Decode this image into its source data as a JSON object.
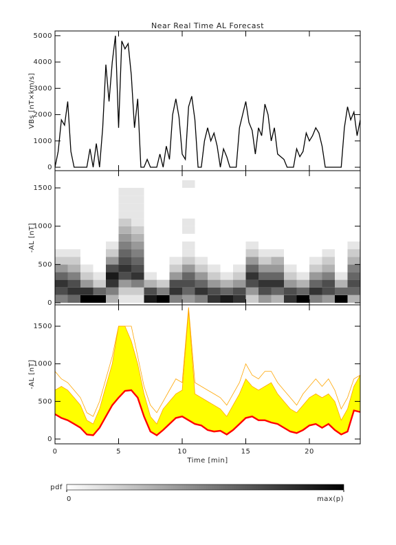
{
  "chart_data": [
    {
      "type": "line",
      "title": "Near Real Time AL Forecast",
      "ylabel": "VBs [nT×km/s]",
      "color": "#000000",
      "xlim": [
        0,
        24
      ],
      "ylim": [
        -130,
        5180
      ],
      "yticks": [
        0,
        1000,
        2000,
        3000,
        4000,
        5000
      ],
      "x": [
        0,
        0.25,
        0.5,
        0.75,
        1,
        1.25,
        1.5,
        1.75,
        2,
        2.25,
        2.5,
        2.75,
        3,
        3.25,
        3.5,
        3.75,
        4,
        4.25,
        4.5,
        4.75,
        5,
        5.25,
        5.5,
        5.75,
        6,
        6.25,
        6.5,
        6.75,
        7,
        7.25,
        7.5,
        7.75,
        8,
        8.25,
        8.5,
        8.75,
        9,
        9.25,
        9.5,
        9.75,
        10,
        10.25,
        10.5,
        10.75,
        11,
        11.25,
        11.5,
        11.75,
        12,
        12.25,
        12.5,
        12.75,
        13,
        13.25,
        13.5,
        13.75,
        14,
        14.25,
        14.5,
        14.75,
        15,
        15.25,
        15.5,
        15.75,
        16,
        16.25,
        16.5,
        16.75,
        17,
        17.25,
        17.5,
        17.75,
        18,
        18.25,
        18.5,
        18.75,
        19,
        19.25,
        19.5,
        19.75,
        20,
        20.25,
        20.5,
        20.75,
        21,
        21.25,
        21.5,
        21.75,
        22,
        22.25,
        22.5,
        22.75,
        23,
        23.25,
        23.5,
        23.75,
        24
      ],
      "values": [
        0,
        600,
        1800,
        1600,
        2500,
        600,
        0,
        0,
        0,
        0,
        0,
        700,
        0,
        900,
        0,
        1500,
        3900,
        2500,
        4000,
        5000,
        1500,
        4800,
        4500,
        4700,
        3500,
        1500,
        2600,
        0,
        0,
        300,
        0,
        0,
        0,
        500,
        0,
        800,
        300,
        2000,
        2600,
        1900,
        500,
        300,
        2300,
        2700,
        1800,
        0,
        0,
        1000,
        1500,
        1000,
        1300,
        800,
        0,
        700,
        400,
        0,
        0,
        0,
        1500,
        2000,
        2500,
        1700,
        1400,
        500,
        1500,
        1200,
        2400,
        2000,
        1000,
        1500,
        500,
        400,
        300,
        0,
        0,
        0,
        700,
        400,
        600,
        1300,
        1000,
        1200,
        1500,
        1300,
        800,
        0,
        0,
        0,
        0,
        0,
        0,
        1500,
        2300,
        1800,
        2100,
        1200,
        1800
      ]
    },
    {
      "type": "heatmap",
      "ylabel": "-AL [nT]",
      "xlim": [
        0,
        24
      ],
      "ylim": [
        -27,
        1725
      ],
      "yticks": [
        0,
        500,
        1000,
        1500
      ],
      "xbins": [
        0,
        1,
        2,
        3,
        4,
        5,
        6,
        7,
        8,
        9,
        10,
        11,
        12,
        13,
        14,
        15,
        16,
        17,
        18,
        19,
        20,
        21,
        22,
        23,
        24
      ],
      "ybins": [
        0,
        100,
        200,
        300,
        400,
        500,
        600,
        700,
        800,
        900,
        1000,
        1100,
        1200,
        1300,
        1400,
        1500,
        1600
      ],
      "z": [
        [
          0.5,
          0.7,
          0.8,
          0.6,
          0.4,
          0.2,
          0.1,
          0,
          0,
          0,
          0,
          0,
          0,
          0,
          0,
          0
        ],
        [
          0.6,
          0.8,
          0.7,
          0.5,
          0.3,
          0.2,
          0.1,
          0,
          0,
          0,
          0,
          0,
          0,
          0,
          0,
          0
        ],
        [
          1,
          0.8,
          0.4,
          0.2,
          0.1,
          0,
          0,
          0,
          0,
          0,
          0,
          0,
          0,
          0,
          0,
          0
        ],
        [
          1,
          0.6,
          0.2,
          0.1,
          0,
          0,
          0,
          0,
          0,
          0,
          0,
          0,
          0,
          0,
          0,
          0
        ],
        [
          0.3,
          0.5,
          0.8,
          0.9,
          0.7,
          0.4,
          0.2,
          0.1,
          0,
          0,
          0,
          0,
          0,
          0,
          0,
          0
        ],
        [
          0.1,
          0.2,
          0.4,
          0.7,
          0.8,
          0.7,
          0.6,
          0.5,
          0.4,
          0.3,
          0.2,
          0.1,
          0.1,
          0.1,
          0.1,
          0
        ],
        [
          0.1,
          0.2,
          0.5,
          0.8,
          0.7,
          0.6,
          0.5,
          0.4,
          0.3,
          0.2,
          0.1,
          0.1,
          0.1,
          0.1,
          0.1,
          0
        ],
        [
          0.9,
          0.7,
          0.3,
          0.1,
          0,
          0,
          0,
          0,
          0,
          0,
          0,
          0,
          0,
          0,
          0,
          0
        ],
        [
          1,
          0.5,
          0.2,
          0,
          0,
          0,
          0,
          0,
          0,
          0,
          0,
          0,
          0,
          0,
          0,
          0
        ],
        [
          0.5,
          0.8,
          0.7,
          0.4,
          0.2,
          0.1,
          0,
          0,
          0,
          0,
          0,
          0,
          0,
          0,
          0,
          0
        ],
        [
          0.4,
          0.6,
          0.7,
          0.6,
          0.4,
          0.2,
          0.1,
          0.1,
          0,
          0.1,
          0.1,
          0,
          0,
          0,
          0,
          0.1
        ],
        [
          0.5,
          0.8,
          0.6,
          0.4,
          0.2,
          0.1,
          0,
          0,
          0,
          0,
          0,
          0,
          0,
          0,
          0,
          0
        ],
        [
          0.8,
          0.7,
          0.4,
          0.2,
          0.1,
          0,
          0,
          0,
          0,
          0,
          0,
          0,
          0,
          0,
          0,
          0
        ],
        [
          0.9,
          0.6,
          0.3,
          0.1,
          0,
          0,
          0,
          0,
          0,
          0,
          0,
          0,
          0,
          0,
          0,
          0
        ],
        [
          0.8,
          0.7,
          0.4,
          0.2,
          0.1,
          0,
          0,
          0,
          0,
          0,
          0,
          0,
          0,
          0,
          0,
          0
        ],
        [
          0.2,
          0.4,
          0.7,
          0.8,
          0.6,
          0.4,
          0.2,
          0.1,
          0,
          0,
          0,
          0,
          0,
          0,
          0,
          0
        ],
        [
          0.4,
          0.7,
          0.8,
          0.6,
          0.4,
          0.2,
          0.1,
          0,
          0,
          0,
          0,
          0,
          0,
          0,
          0,
          0
        ],
        [
          0.3,
          0.6,
          0.8,
          0.6,
          0.4,
          0.3,
          0.1,
          0,
          0,
          0,
          0,
          0,
          0,
          0,
          0,
          0
        ],
        [
          0.8,
          0.7,
          0.4,
          0.2,
          0.1,
          0,
          0,
          0,
          0,
          0,
          0,
          0,
          0,
          0,
          0,
          0
        ],
        [
          1,
          0.6,
          0.3,
          0.1,
          0,
          0,
          0,
          0,
          0,
          0,
          0,
          0,
          0,
          0,
          0,
          0
        ],
        [
          0.5,
          0.8,
          0.6,
          0.4,
          0.2,
          0.1,
          0,
          0,
          0,
          0,
          0,
          0,
          0,
          0,
          0,
          0
        ],
        [
          0.4,
          0.7,
          0.7,
          0.5,
          0.3,
          0.2,
          0.1,
          0,
          0,
          0,
          0,
          0,
          0,
          0,
          0,
          0
        ],
        [
          1,
          0.6,
          0.3,
          0.1,
          0,
          0,
          0,
          0,
          0,
          0,
          0,
          0,
          0,
          0,
          0,
          0
        ],
        [
          0.3,
          0.6,
          0.7,
          0.6,
          0.5,
          0.3,
          0.2,
          0.1,
          0,
          0,
          0,
          0,
          0,
          0,
          0,
          0
        ]
      ],
      "colorbar": {
        "label": "pdf",
        "colors": [
          "#ffffff",
          "#000000"
        ],
        "ticks": [
          0,
          {
            "value": 1,
            "label": "max(p)"
          }
        ]
      }
    },
    {
      "type": "band",
      "ylabel": "-AL [nT]",
      "xlabel": "Time [min]",
      "xlim": [
        0,
        24
      ],
      "ylim": [
        -64,
        1784
      ],
      "yticks": [
        0,
        500,
        1000,
        1500
      ],
      "xticks": [
        0,
        5,
        10,
        15,
        20
      ],
      "x": [
        0,
        0.5,
        1,
        1.5,
        2,
        2.5,
        3,
        3.5,
        4,
        4.5,
        5,
        5.5,
        6,
        6.5,
        7,
        7.5,
        8,
        8.5,
        9,
        9.5,
        10,
        10.5,
        11,
        11.5,
        12,
        12.5,
        13,
        13.5,
        14,
        14.5,
        15,
        15.5,
        16,
        16.5,
        17,
        17.5,
        18,
        18.5,
        19,
        19.5,
        20,
        20.5,
        21,
        21.5,
        22,
        22.5,
        23,
        23.5,
        24
      ],
      "series": [
        {
          "color": "#ffa500",
          "values": [
            900,
            800,
            750,
            650,
            550,
            350,
            300,
            500,
            800,
            1100,
            1500,
            1500,
            1500,
            1100,
            700,
            450,
            350,
            500,
            650,
            800,
            750,
            1750,
            750,
            700,
            650,
            600,
            550,
            450,
            600,
            750,
            1000,
            850,
            800,
            900,
            900,
            750,
            650,
            550,
            450,
            600,
            700,
            800,
            700,
            800,
            650,
            400,
            550,
            800,
            850
          ]
        },
        {
          "color": "#ffff00",
          "values": [
            650,
            700,
            650,
            550,
            450,
            250,
            200,
            400,
            700,
            1000,
            1500,
            1500,
            1300,
            1000,
            600,
            300,
            200,
            400,
            500,
            600,
            650,
            1700,
            600,
            550,
            500,
            450,
            400,
            300,
            450,
            600,
            800,
            700,
            650,
            700,
            750,
            600,
            500,
            400,
            350,
            450,
            550,
            600,
            550,
            600,
            500,
            250,
            400,
            700,
            850
          ]
        },
        {
          "color": "#ff0000",
          "values": [
            330,
            280,
            250,
            200,
            150,
            60,
            50,
            150,
            300,
            450,
            550,
            640,
            650,
            550,
            300,
            100,
            50,
            120,
            200,
            280,
            300,
            250,
            200,
            180,
            120,
            100,
            110,
            60,
            120,
            200,
            280,
            300,
            250,
            250,
            220,
            200,
            150,
            100,
            80,
            120,
            180,
            200,
            150,
            200,
            120,
            60,
            100,
            380,
            360
          ]
        }
      ]
    }
  ]
}
